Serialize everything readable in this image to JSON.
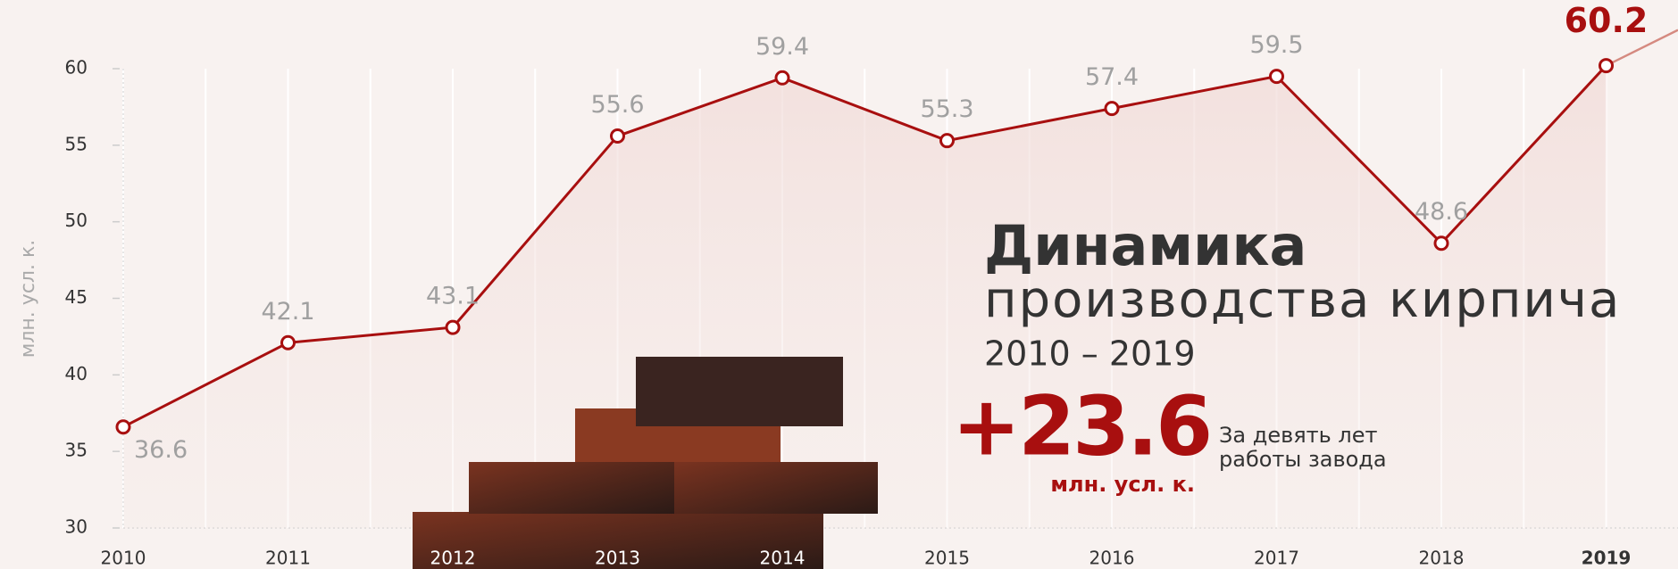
{
  "chart_data": {
    "type": "line",
    "title": "Динамика",
    "subtitle": "производства кирпича",
    "period": "2010 – 2019",
    "highlight_label": "+23.6",
    "highlight_unit": "млн. усл. к.",
    "highlight_note": [
      "За девять лет",
      "работы завода"
    ],
    "y_label": "млн. усл. к.",
    "categories": [
      "2010",
      "2011",
      "2012",
      "2013",
      "2014",
      "2015",
      "2016",
      "2017",
      "2018",
      "2019"
    ],
    "values": [
      36.6,
      42.1,
      43.1,
      55.6,
      59.4,
      55.3,
      57.4,
      59.5,
      48.6,
      60.2
    ],
    "color": "#a80f0f",
    "ylim": [
      30,
      60
    ],
    "yticks": [
      30,
      35,
      40,
      45,
      50,
      55,
      60
    ],
    "grid": true
  }
}
